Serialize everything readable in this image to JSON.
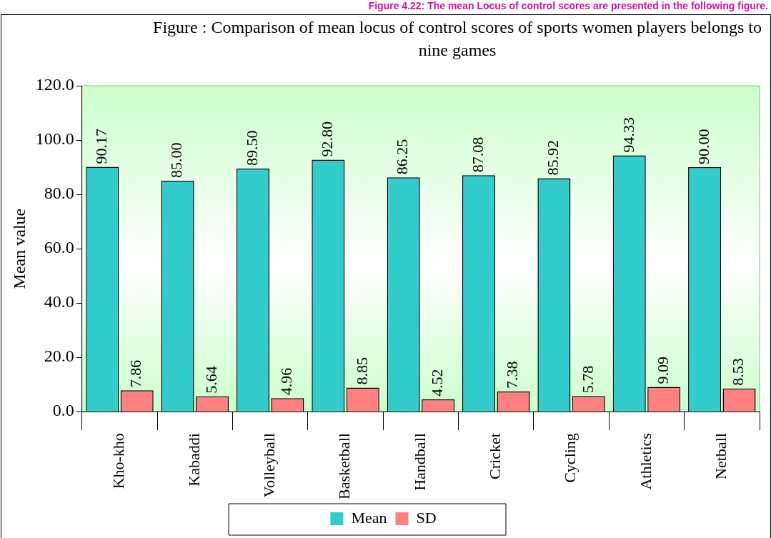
{
  "chart_data": {
    "type": "bar",
    "title": "Figure : Comparison of mean locus of control scores of sports women players belongs to nine games",
    "ylabel": "Mean value",
    "annotations": [
      "Figure 4.22: The mean Locus of control scores are presented in the following figure."
    ],
    "categories": [
      "Kho-kho",
      "Kabaddi",
      "Volleyball",
      "Basketball",
      "Handball",
      "Cricket",
      "Cycling",
      "Athletics",
      "Netball"
    ],
    "series": [
      {
        "name": "Mean",
        "color": "#33cccc",
        "values": [
          90.17,
          85.0,
          89.5,
          92.8,
          86.25,
          87.08,
          85.92,
          94.33,
          90.0
        ],
        "value_labels": [
          "90.17",
          "85.00",
          "89.50",
          "92.80",
          "86.25",
          "87.08",
          "85.92",
          "94.33",
          "90.00"
        ]
      },
      {
        "name": "SD",
        "color": "#ff8080",
        "values": [
          7.86,
          5.64,
          4.96,
          8.85,
          4.52,
          7.38,
          5.78,
          9.09,
          8.53
        ],
        "value_labels": [
          "7.86",
          "5.64",
          "4.96",
          "8.85",
          "4.52",
          "7.38",
          "5.78",
          "9.09",
          "8.53"
        ]
      }
    ],
    "ylim": [
      0,
      120
    ],
    "yticks": [
      {
        "value": 0,
        "label": "0.0"
      },
      {
        "value": 20,
        "label": "20.0"
      },
      {
        "value": 40,
        "label": "40.0"
      },
      {
        "value": 60,
        "label": "60.0"
      },
      {
        "value": 80,
        "label": "80.0"
      },
      {
        "value": 100,
        "label": "100.0"
      },
      {
        "value": 120,
        "label": "120.0"
      }
    ],
    "grid": false,
    "legend": "bottom"
  }
}
